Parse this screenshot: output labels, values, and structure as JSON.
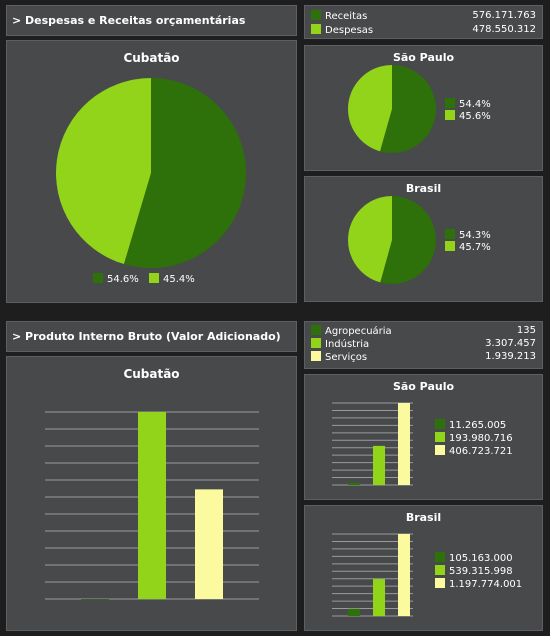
{
  "colors": {
    "receitas": "#2e7009",
    "despesas": "#92d41a",
    "agro": "#2e7009",
    "industria": "#92d41a",
    "servicos": "#fbfa9f"
  },
  "section1": {
    "title": "> Despesas e Receitas orçamentárias",
    "legend": [
      {
        "label": "Receitas",
        "value": "576.171.763"
      },
      {
        "label": "Despesas",
        "value": "478.550.312"
      }
    ]
  },
  "section2": {
    "title": "> Produto Interno Bruto (Valor Adicionado)",
    "legend": [
      {
        "label": "Agropecuária",
        "value": "135"
      },
      {
        "label": "Indústria",
        "value": "3.307.457"
      },
      {
        "label": "Serviços",
        "value": "1.939.213"
      }
    ]
  },
  "chart_data": [
    {
      "type": "pie",
      "title": "Cubatão",
      "series": [
        {
          "name": "Receitas",
          "value": 54.6,
          "label": "54.6%"
        },
        {
          "name": "Despesas",
          "value": 45.4,
          "label": "45.4%"
        }
      ]
    },
    {
      "type": "pie",
      "title": "São Paulo",
      "series": [
        {
          "name": "Receitas",
          "value": 54.4,
          "label": "54.4%"
        },
        {
          "name": "Despesas",
          "value": 45.6,
          "label": "45.6%"
        }
      ]
    },
    {
      "type": "pie",
      "title": "Brasil",
      "series": [
        {
          "name": "Receitas",
          "value": 54.3,
          "label": "54.3%"
        },
        {
          "name": "Despesas",
          "value": 45.7,
          "label": "45.7%"
        }
      ]
    },
    {
      "type": "bar",
      "title": "Cubatão",
      "categories": [
        "Agropecuária",
        "Indústria",
        "Serviços"
      ],
      "values": [
        135,
        3307457,
        1939213
      ],
      "ylim": [
        0,
        3307457
      ],
      "grid": true
    },
    {
      "type": "bar",
      "title": "São Paulo",
      "categories": [
        "Agropecuária",
        "Indústria",
        "Serviços"
      ],
      "values": [
        11265005,
        193980716,
        406723721
      ],
      "labels": [
        "11.265.005",
        "193.980.716",
        "406.723.721"
      ],
      "ylim": [
        0,
        406723721
      ],
      "grid": true
    },
    {
      "type": "bar",
      "title": "Brasil",
      "categories": [
        "Agropecuária",
        "Indústria",
        "Serviços"
      ],
      "values": [
        105163000,
        539315998,
        1197774001
      ],
      "labels": [
        "105.163.000",
        "539.315.998",
        "1.197.774.001"
      ],
      "ylim": [
        0,
        1197774001
      ],
      "grid": true
    }
  ]
}
